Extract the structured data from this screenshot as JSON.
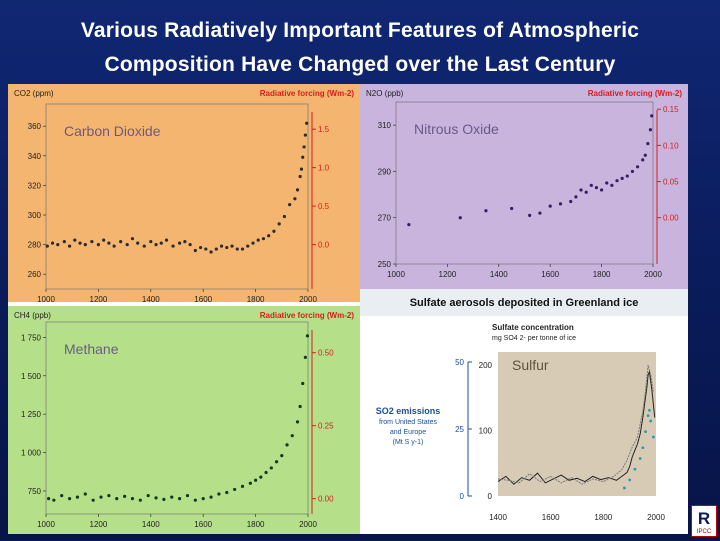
{
  "slide": {
    "title_line1": "Various Radiatively Important Features of Atmospheric",
    "title_line2": "Composition  Have Changed over the Last Century"
  },
  "logo": {
    "text": "R",
    "sub": "IPCC"
  },
  "colors": {
    "background": "#0b1a5c",
    "co2_panel": "#f4b570",
    "n2o_panel": "#c8b4dc",
    "ch4_panel": "#b6df8a",
    "sulfur_panel": "#d8cbb6",
    "forcing_red": "#d81e1e",
    "sulfate_bar": "#e8eef2"
  },
  "chart_data": [
    {
      "type": "scatter",
      "title": "Carbon Dioxide",
      "ylabel": "CO2 (ppm)",
      "y2label": "Radiative forcing (Wm-2)",
      "x_ticks": [
        "1000",
        "1200",
        "1400",
        "1600",
        "1800",
        "2000"
      ],
      "y_ticks": [
        "360",
        "340",
        "320",
        "300",
        "280",
        "260"
      ],
      "y2_ticks": [
        "1.5",
        "1.0",
        "0.5",
        "0.0"
      ],
      "xlim": [
        1000,
        2000
      ],
      "ylim": [
        250,
        375
      ],
      "y2_scale": {
        "zero_at": 280,
        "per_unit": 52
      },
      "x": [
        1005,
        1025,
        1045,
        1070,
        1090,
        1110,
        1130,
        1150,
        1175,
        1200,
        1220,
        1240,
        1260,
        1285,
        1310,
        1330,
        1350,
        1375,
        1400,
        1420,
        1440,
        1460,
        1485,
        1510,
        1530,
        1550,
        1570,
        1590,
        1610,
        1630,
        1650,
        1670,
        1690,
        1710,
        1730,
        1750,
        1770,
        1790,
        1810,
        1830,
        1850,
        1870,
        1890,
        1910,
        1930,
        1950,
        1960,
        1970,
        1975,
        1980,
        1985,
        1990,
        1995
      ],
      "y": [
        279,
        281,
        280,
        282,
        279,
        283,
        281,
        280,
        282,
        280,
        283,
        281,
        279,
        282,
        280,
        284,
        281,
        279,
        282,
        280,
        281,
        283,
        279,
        281,
        282,
        280,
        276,
        278,
        277,
        275,
        277,
        279,
        278,
        279,
        277,
        277,
        279,
        281,
        283,
        284,
        286,
        289,
        294,
        299,
        307,
        311,
        317,
        326,
        331,
        339,
        346,
        354,
        362
      ]
    },
    {
      "type": "scatter",
      "title": "Nitrous Oxide",
      "ylabel": "N2O (ppb)",
      "y2label": "Radiative forcing (Wm-2)",
      "x_ticks": [
        "1000",
        "1200",
        "1400",
        "1600",
        "1800",
        "2000"
      ],
      "y_ticks": [
        "310",
        "290",
        "270",
        "250"
      ],
      "y2_ticks": [
        "0.15",
        "0.10",
        "0.05",
        "0.00"
      ],
      "xlim": [
        1000,
        2000
      ],
      "ylim": [
        250,
        320
      ],
      "y2_scale": {
        "zero_at": 270,
        "per_unit": 0.0032
      },
      "x": [
        1050,
        1250,
        1350,
        1450,
        1520,
        1560,
        1600,
        1640,
        1680,
        1700,
        1720,
        1740,
        1760,
        1780,
        1800,
        1820,
        1840,
        1860,
        1880,
        1900,
        1920,
        1940,
        1960,
        1970,
        1980,
        1990,
        1995
      ],
      "y": [
        267,
        270,
        273,
        274,
        271,
        272,
        275,
        276,
        277,
        279,
        282,
        281,
        284,
        283,
        282,
        285,
        284,
        286,
        287,
        288,
        290,
        292,
        295,
        297,
        302,
        308,
        314
      ]
    },
    {
      "type": "scatter",
      "title": "Methane",
      "ylabel": "CH4 (ppb)",
      "y2label": "Radiative forcing (Wm-2)",
      "x_ticks": [
        "1000",
        "1200",
        "1400",
        "1600",
        "1800",
        "2000"
      ],
      "y_ticks": [
        "1 750",
        "1 500",
        "1 250",
        "1 000",
        "750"
      ],
      "y2_ticks": [
        "0.50",
        "0.25",
        "0.00"
      ],
      "xlim": [
        1000,
        2000
      ],
      "ylim": [
        600,
        1850
      ],
      "y2_scale": {
        "zero_at": 700,
        "per_unit": 1900
      },
      "x": [
        1010,
        1030,
        1060,
        1090,
        1120,
        1150,
        1180,
        1210,
        1240,
        1270,
        1300,
        1330,
        1360,
        1390,
        1420,
        1450,
        1480,
        1510,
        1540,
        1570,
        1600,
        1630,
        1660,
        1690,
        1720,
        1750,
        1780,
        1800,
        1820,
        1840,
        1860,
        1880,
        1900,
        1920,
        1940,
        1960,
        1970,
        1980,
        1990,
        1998
      ],
      "y": [
        700,
        690,
        720,
        700,
        710,
        730,
        690,
        710,
        720,
        700,
        715,
        700,
        690,
        720,
        705,
        695,
        710,
        700,
        720,
        690,
        700,
        710,
        730,
        740,
        760,
        780,
        800,
        820,
        840,
        870,
        900,
        940,
        980,
        1050,
        1110,
        1200,
        1300,
        1450,
        1620,
        1760
      ]
    },
    {
      "type": "line",
      "title": "Sulfur",
      "header": "Sulfate aerosols deposited in Greenland ice",
      "ylabel": "Sulfate concentration",
      "yunit": "mg SO4 2- per tonne of ice",
      "y2label": "SO2 emissions from United States and Europe (Mt S y-1)",
      "x_ticks": [
        "1400",
        "1600",
        "1800",
        "2000"
      ],
      "y_ticks": [
        "200",
        "100",
        "0"
      ],
      "y2_ticks": [
        "50",
        "25",
        "0"
      ],
      "xlim": [
        1400,
        2000
      ],
      "ylim": [
        0,
        220
      ],
      "series": [
        {
          "x": [
            1400,
            1430,
            1460,
            1490,
            1520,
            1550,
            1580,
            1610,
            1640,
            1670,
            1700,
            1730,
            1760,
            1790,
            1820,
            1850,
            1870,
            1890,
            1900,
            1910,
            1920,
            1930,
            1940,
            1950,
            1960,
            1965,
            1970,
            1975,
            1980,
            1985,
            1990,
            1995
          ],
          "y": [
            22,
            30,
            18,
            28,
            24,
            35,
            20,
            26,
            32,
            24,
            27,
            22,
            30,
            25,
            28,
            24,
            30,
            36,
            45,
            60,
            70,
            80,
            95,
            120,
            150,
            165,
            185,
            190,
            175,
            160,
            140,
            120
          ]
        },
        {
          "x": [
            1400,
            1440,
            1480,
            1520,
            1560,
            1600,
            1640,
            1680,
            1720,
            1760,
            1800,
            1840,
            1870,
            1890,
            1910,
            1930,
            1950,
            1960,
            1970,
            1980,
            1990
          ],
          "y": [
            26,
            24,
            20,
            34,
            22,
            30,
            20,
            28,
            18,
            26,
            22,
            30,
            40,
            55,
            75,
            90,
            130,
            160,
            200,
            185,
            160
          ]
        }
      ],
      "emissions": {
        "x": [
          1880,
          1900,
          1920,
          1940,
          1950,
          1960,
          1970,
          1975,
          1980,
          1990
        ],
        "y": [
          3,
          6,
          10,
          14,
          18,
          24,
          30,
          32,
          28,
          22
        ]
      }
    }
  ]
}
